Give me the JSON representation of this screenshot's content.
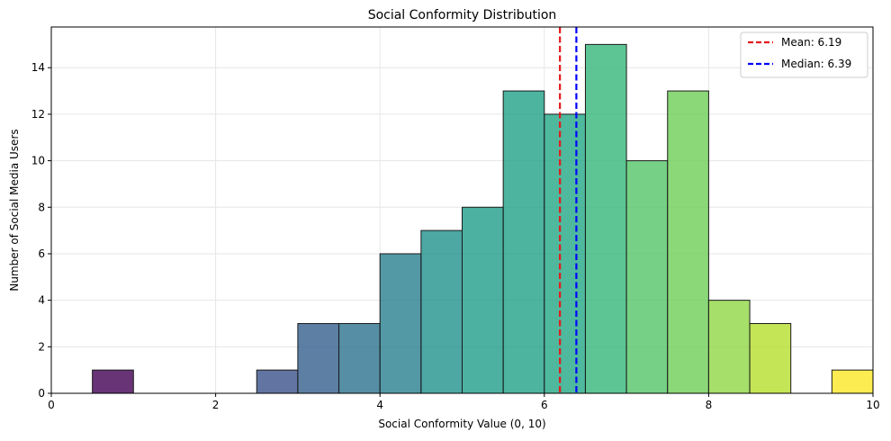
{
  "chart_data": {
    "type": "bar",
    "title": "Social Conformity Distribution",
    "xlabel": "Social Conformity Value (0, 10)",
    "ylabel": "Number of Social Media Users",
    "xlim": [
      0,
      10
    ],
    "ylim": [
      0,
      15.75
    ],
    "xticks": [
      0,
      2,
      4,
      6,
      8,
      10
    ],
    "yticks": [
      0,
      2,
      4,
      6,
      8,
      10,
      12,
      14
    ],
    "grid": true,
    "legend_position": "top-right",
    "bins": [
      {
        "start": 0.5,
        "end": 1.0,
        "count": 1,
        "color": "#440154"
      },
      {
        "start": 1.0,
        "end": 1.5,
        "count": 0,
        "color": "#471365"
      },
      {
        "start": 1.5,
        "end": 2.0,
        "count": 0,
        "color": "#482475"
      },
      {
        "start": 2.0,
        "end": 2.5,
        "count": 0,
        "color": "#463480"
      },
      {
        "start": 2.5,
        "end": 3.0,
        "count": 1,
        "color": "#3b528b"
      },
      {
        "start": 3.0,
        "end": 3.5,
        "count": 3,
        "color": "#355f8d"
      },
      {
        "start": 3.5,
        "end": 4.0,
        "count": 3,
        "color": "#2c728e"
      },
      {
        "start": 4.0,
        "end": 4.5,
        "count": 6,
        "color": "#277f8e"
      },
      {
        "start": 4.5,
        "end": 5.0,
        "count": 7,
        "color": "#21918c"
      },
      {
        "start": 5.0,
        "end": 5.5,
        "count": 8,
        "color": "#1f9e89"
      },
      {
        "start": 5.5,
        "end": 6.0,
        "count": 13,
        "color": "#1fa187"
      },
      {
        "start": 6.0,
        "end": 6.5,
        "count": 12,
        "color": "#22a884"
      },
      {
        "start": 6.5,
        "end": 7.0,
        "count": 15,
        "color": "#35b779"
      },
      {
        "start": 7.0,
        "end": 7.5,
        "count": 10,
        "color": "#54c568"
      },
      {
        "start": 7.5,
        "end": 8.0,
        "count": 13,
        "color": "#6ece58"
      },
      {
        "start": 8.0,
        "end": 8.5,
        "count": 4,
        "color": "#90d743"
      },
      {
        "start": 8.5,
        "end": 9.0,
        "count": 3,
        "color": "#b5de2b"
      },
      {
        "start": 9.0,
        "end": 9.5,
        "count": 0,
        "color": "#d8e219"
      },
      {
        "start": 9.5,
        "end": 10.0,
        "count": 1,
        "color": "#fde725"
      }
    ],
    "mean": {
      "value": 6.19,
      "label": "Mean: 6.19",
      "color": "#e41a1c"
    },
    "median": {
      "value": 6.39,
      "label": "Median: 6.39",
      "color": "#0000ff"
    }
  }
}
